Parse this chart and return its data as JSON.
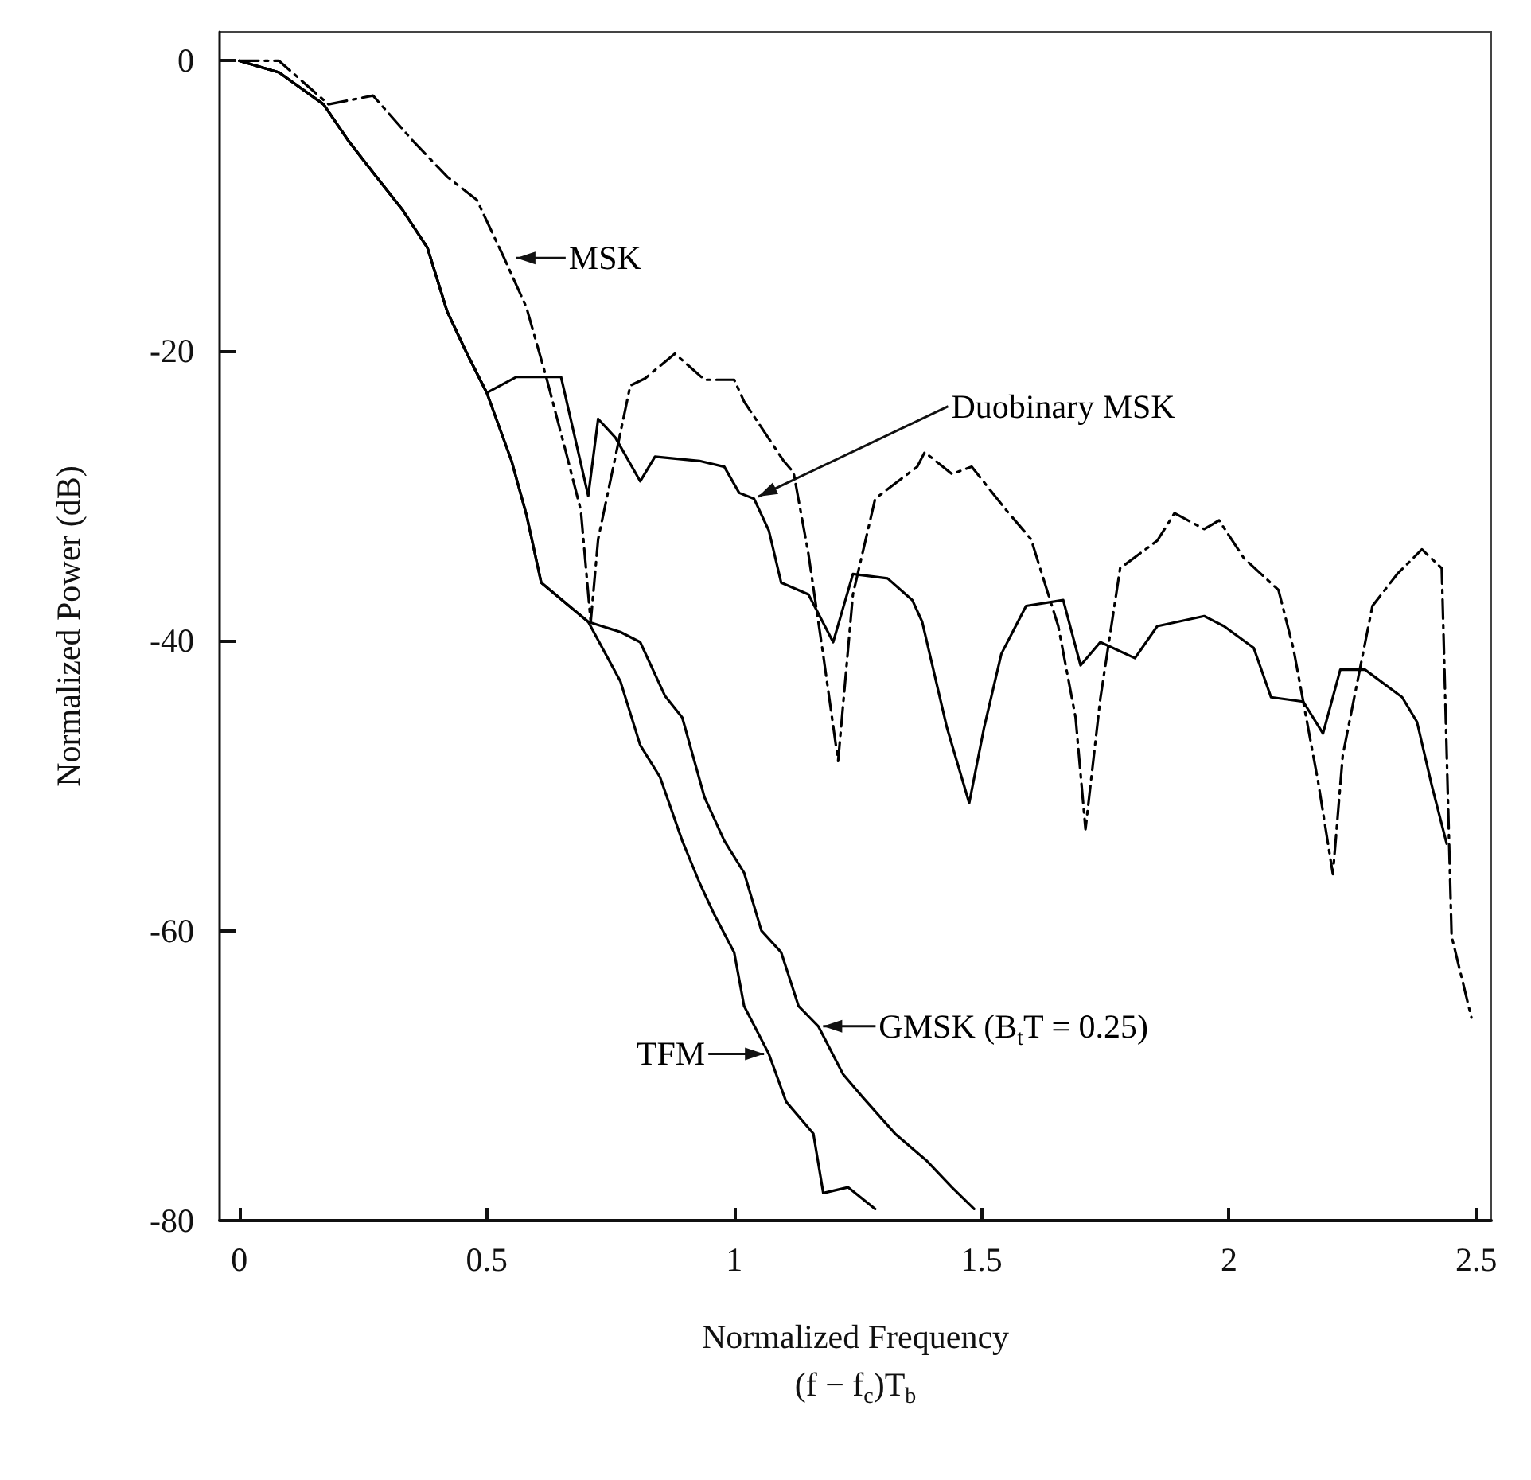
{
  "chart_data": {
    "type": "line",
    "xlabel": "Normalized Frequency\n(f − f$_{c}$)T$_{b}$",
    "ylabel": "Normalized Power (dB)",
    "xlim": [
      -0.04,
      2.53
    ],
    "ylim": [
      -80,
      2
    ],
    "xticks": [
      0,
      0.5,
      1,
      1.5,
      2,
      2.5
    ],
    "yticks": [
      0,
      -20,
      -40,
      -60,
      -80
    ],
    "grid": false,
    "marker": "none",
    "series": [
      {
        "color": "#000000",
        "line_style": "dashed",
        "x": [
          0,
          0.08,
          0.18,
          0.27,
          0.35,
          0.42,
          0.48,
          0.535,
          0.58,
          0.62,
          0.66,
          0.69,
          0.71,
          0.725,
          0.79,
          0.82,
          0.88,
          0.94,
          1.0,
          1.02,
          1.1,
          1.12,
          1.15,
          1.18,
          1.21,
          1.24,
          1.285,
          1.37,
          1.385,
          1.44,
          1.48,
          1.55,
          1.6,
          1.655,
          1.69,
          1.71,
          1.74,
          1.78,
          1.855,
          1.89,
          1.95,
          1.98,
          2.03,
          2.1,
          2.13,
          2.18,
          2.21,
          2.23,
          2.29,
          2.34,
          2.39,
          2.43,
          2.45,
          2.49
        ],
        "values": [
          0,
          0,
          -3,
          -2.4,
          -5.5,
          -8,
          -9.6,
          -13.6,
          -17,
          -21.8,
          -27,
          -31,
          -38.7,
          -33,
          -22.4,
          -21.9,
          -20.2,
          -22,
          -22,
          -23.5,
          -27.6,
          -28.4,
          -34,
          -41,
          -48.3,
          -36.8,
          -30.2,
          -28,
          -27,
          -28.5,
          -28,
          -31,
          -33,
          -39,
          -45.3,
          -53,
          -44,
          -35,
          -33.1,
          -31.2,
          -32.3,
          -31.7,
          -34.3,
          -36.5,
          -40.5,
          -49.7,
          -56.1,
          -47.9,
          -37.6,
          -35.4,
          -33.7,
          -35,
          -60.4,
          -66
        ]
      },
      {
        "color": "#000000",
        "line_style": "solid",
        "x": [
          0,
          0.08,
          0.17,
          0.22,
          0.27,
          0.33,
          0.38,
          0.42,
          0.46,
          0.5,
          0.56,
          0.65,
          0.705,
          0.725,
          0.76,
          0.81,
          0.84,
          0.93,
          0.98,
          1.01,
          1.04,
          1.07,
          1.095,
          1.15,
          1.2,
          1.24,
          1.31,
          1.36,
          1.38,
          1.43,
          1.475,
          1.505,
          1.54,
          1.59,
          1.665,
          1.7,
          1.74,
          1.81,
          1.855,
          1.95,
          1.99,
          2.05,
          2.085,
          2.15,
          2.19,
          2.225,
          2.275,
          2.35,
          2.38,
          2.41,
          2.44
        ],
        "values": [
          0,
          -0.8,
          -3,
          -5.5,
          -7.7,
          -10.3,
          -12.9,
          -17.3,
          -20.2,
          -22.9,
          -21.8,
          -21.8,
          -30,
          -24.7,
          -26,
          -29,
          -27.3,
          -27.6,
          -28,
          -29.8,
          -30.2,
          -32.4,
          -36,
          -36.8,
          -40.1,
          -35.4,
          -35.7,
          -37.2,
          -38.7,
          -46,
          -51.2,
          -46,
          -40.9,
          -37.6,
          -37.2,
          -41.7,
          -40.1,
          -41.2,
          -39,
          -38.3,
          -39,
          -40.5,
          -43.9,
          -44.2,
          -46.4,
          -42,
          -42,
          -43.9,
          -45.6,
          -50,
          -54
        ]
      },
      {
        "color": "#000000",
        "line_style": "solid",
        "x": [
          0,
          0.08,
          0.17,
          0.22,
          0.27,
          0.33,
          0.38,
          0.42,
          0.46,
          0.5,
          0.55,
          0.58,
          0.61,
          0.705,
          0.77,
          0.81,
          0.86,
          0.895,
          0.94,
          0.98,
          1.02,
          1.055,
          1.095,
          1.13,
          1.17,
          1.22,
          1.26,
          1.325,
          1.39,
          1.44,
          1.485
        ],
        "values": [
          0,
          -0.8,
          -3,
          -5.5,
          -7.7,
          -10.3,
          -12.9,
          -17.3,
          -20.2,
          -22.9,
          -27.6,
          -31.3,
          -36,
          -38.7,
          -39.4,
          -40.1,
          -43.8,
          -45.3,
          -50.8,
          -53.8,
          -56,
          -60,
          -61.5,
          -65.2,
          -66.6,
          -69.9,
          -71.5,
          -74,
          -75.9,
          -77.7,
          -79.2
        ]
      },
      {
        "color": "#000000",
        "line_style": "solid",
        "x": [
          0,
          0.08,
          0.17,
          0.22,
          0.27,
          0.33,
          0.38,
          0.42,
          0.46,
          0.5,
          0.55,
          0.58,
          0.61,
          0.705,
          0.77,
          0.81,
          0.85,
          0.895,
          0.93,
          0.96,
          1.0,
          1.02,
          1.07,
          1.105,
          1.16,
          1.18,
          1.23,
          1.285
        ],
        "values": [
          0,
          -0.8,
          -3,
          -5.5,
          -7.7,
          -10.3,
          -12.9,
          -17.3,
          -20.2,
          -22.9,
          -27.6,
          -31.3,
          -36,
          -38.7,
          -42.8,
          -47.2,
          -49.4,
          -53.8,
          -56.7,
          -58.9,
          -61.5,
          -65.2,
          -68.5,
          -71.8,
          -74,
          -78.1,
          -77.7,
          -79.2
        ]
      }
    ],
    "annotations": [
      {
        "text": "MSK",
        "x": 0.55,
        "y": -13.6
      },
      {
        "text": "Duobinary MSK",
        "x": 1.04,
        "y": -30.2
      },
      {
        "text": "GMSK (B$_{t}$T = 0.25)",
        "x": 1.17,
        "y": -66.6
      },
      {
        "text": "TFM",
        "x": 1.07,
        "y": -68.5
      }
    ]
  }
}
